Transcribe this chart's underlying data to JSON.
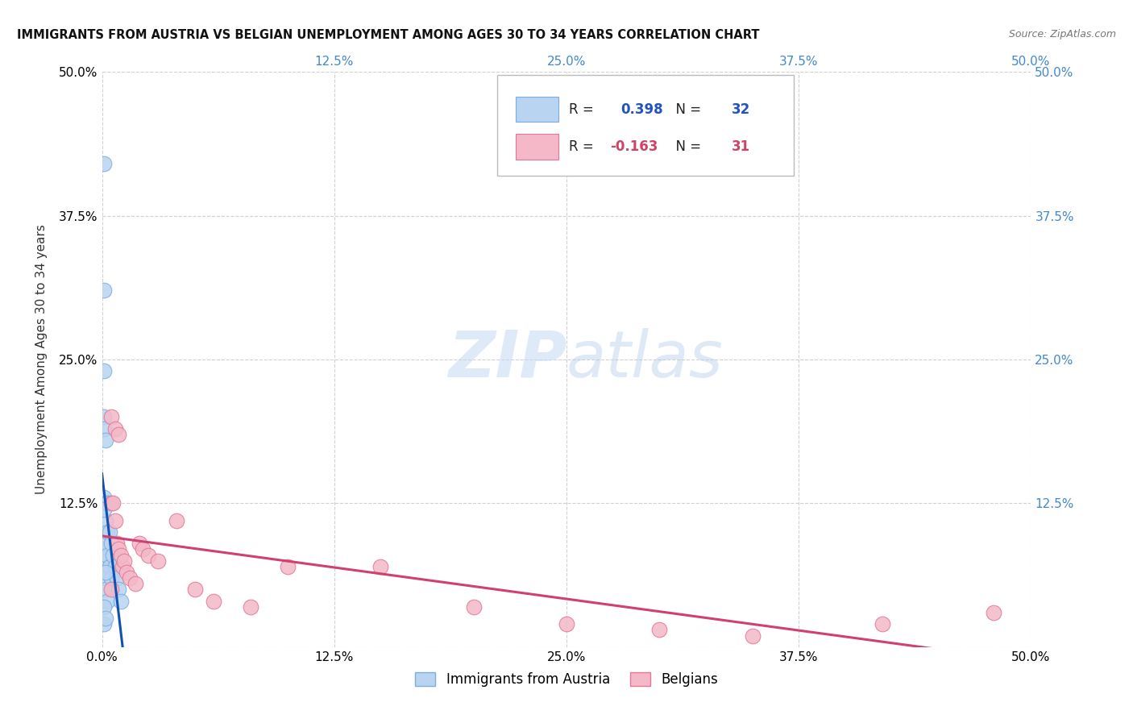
{
  "title": "IMMIGRANTS FROM AUSTRIA VS BELGIAN UNEMPLOYMENT AMONG AGES 30 TO 34 YEARS CORRELATION CHART",
  "source": "Source: ZipAtlas.com",
  "ylabel": "Unemployment Among Ages 30 to 34 years",
  "xlim": [
    0,
    0.5
  ],
  "ylim": [
    0,
    0.5
  ],
  "xticks": [
    0.0,
    0.125,
    0.25,
    0.375,
    0.5
  ],
  "yticks": [
    0.0,
    0.125,
    0.25,
    0.375,
    0.5
  ],
  "blue_R": 0.398,
  "blue_N": 32,
  "pink_R": -0.163,
  "pink_N": 31,
  "blue_color": "#b8d4f0",
  "blue_edge_color": "#7aade0",
  "pink_color": "#f4b8c8",
  "pink_edge_color": "#e07898",
  "blue_line_color": "#1050b0",
  "pink_line_color": "#d04070",
  "background_color": "#ffffff",
  "grid_color": "#cccccc",
  "blue_scatter_x": [
    0.001,
    0.001,
    0.001,
    0.001,
    0.001,
    0.001,
    0.001,
    0.001,
    0.002,
    0.002,
    0.002,
    0.002,
    0.002,
    0.002,
    0.002,
    0.003,
    0.003,
    0.003,
    0.003,
    0.004,
    0.004,
    0.005,
    0.005,
    0.006,
    0.007,
    0.008,
    0.009,
    0.01,
    0.001,
    0.002,
    0.001,
    0.002
  ],
  "blue_scatter_y": [
    0.42,
    0.31,
    0.24,
    0.2,
    0.19,
    0.13,
    0.085,
    0.02,
    0.18,
    0.125,
    0.11,
    0.09,
    0.075,
    0.06,
    0.05,
    0.125,
    0.1,
    0.08,
    0.04,
    0.1,
    0.07,
    0.09,
    0.06,
    0.08,
    0.07,
    0.06,
    0.05,
    0.04,
    0.12,
    0.065,
    0.035,
    0.025
  ],
  "pink_scatter_x": [
    0.005,
    0.006,
    0.007,
    0.008,
    0.009,
    0.005,
    0.007,
    0.009,
    0.011,
    0.01,
    0.012,
    0.013,
    0.015,
    0.018,
    0.02,
    0.022,
    0.025,
    0.03,
    0.04,
    0.05,
    0.06,
    0.08,
    0.1,
    0.15,
    0.2,
    0.25,
    0.3,
    0.35,
    0.42,
    0.48,
    0.005
  ],
  "pink_scatter_y": [
    0.125,
    0.125,
    0.11,
    0.09,
    0.085,
    0.2,
    0.19,
    0.185,
    0.07,
    0.08,
    0.075,
    0.065,
    0.06,
    0.055,
    0.09,
    0.085,
    0.08,
    0.075,
    0.11,
    0.05,
    0.04,
    0.035,
    0.07,
    0.07,
    0.035,
    0.02,
    0.015,
    0.01,
    0.02,
    0.03,
    0.05
  ]
}
